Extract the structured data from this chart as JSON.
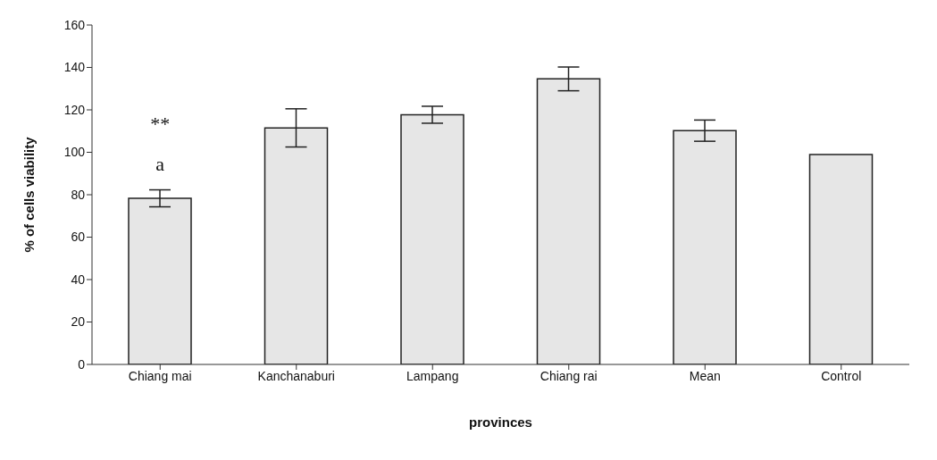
{
  "chart_data": {
    "type": "bar",
    "xlabel": "provinces",
    "ylabel": "% of cells viability",
    "categories": [
      "Chiang mai",
      "Kanchanaburi",
      "Lampang",
      "Chiang rai",
      "Mean",
      "Control"
    ],
    "values": [
      78.3,
      111.5,
      117.7,
      134.6,
      110.2,
      99
    ],
    "errors": [
      4,
      9,
      4,
      5.6,
      5,
      null
    ],
    "color": "#e6e6e6",
    "ylim": [
      0,
      160
    ],
    "yticks": [
      0,
      20,
      40,
      60,
      80,
      100,
      120,
      140,
      160
    ],
    "grid": false,
    "annotations": [
      "a",
      "**"
    ]
  }
}
